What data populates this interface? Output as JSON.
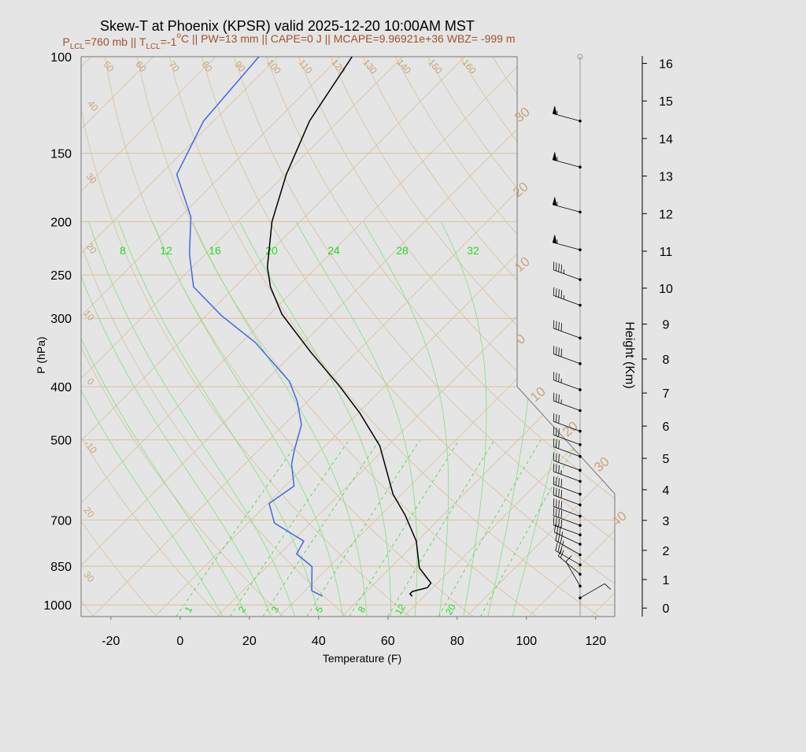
{
  "chart_data": {
    "type": "skewt",
    "title": "Skew-T at Phoenix (KPSR) valid 2025-12-20 10:00AM MST",
    "subtitle_parts": [
      "P",
      "LCL",
      "=760 mb || T",
      "LCL",
      "=-1",
      "o",
      "C || PW=13 mm || CAPE=0 J || MCAPE=9.96921e+36 WBZ= -999 m"
    ],
    "xlabel": "Temperature (F)",
    "ylabel": "P (hPa)",
    "y2label": "Height (Km)",
    "xlim": [
      -28.6,
      125.5
    ],
    "xticks": [
      -20,
      0,
      20,
      40,
      60,
      80,
      100,
      120
    ],
    "ylim": [
      1050,
      100
    ],
    "log_y": true,
    "yticks": [
      100,
      150,
      200,
      250,
      300,
      400,
      500,
      700,
      850,
      1000
    ],
    "y2lim": [
      -0.3,
      16.2
    ],
    "y2ticks": [
      0,
      1,
      2,
      3,
      4,
      5,
      6,
      7,
      8,
      9,
      10,
      11,
      12,
      13,
      14,
      15,
      16
    ],
    "series": [
      {
        "color": "#000000",
        "pressure": [
          100,
          131,
          164,
          200,
          242,
          263,
          295,
          346,
          400,
          447,
          513,
          628,
          686,
          765,
          856,
          912,
          930,
          945,
          955,
          964
        ],
        "values": [
          -108.6,
          -102.3,
          -93.6,
          -84.1,
          -72.3,
          -65.7,
          -54.5,
          -35.2,
          -16.8,
          -3.4,
          11.8,
          29.5,
          39.1,
          49.8,
          58.4,
          66.1,
          66.4,
          63.2,
          63.2,
          64.5
        ]
      },
      {
        "color": "#4169e1",
        "pressure": [
          100,
          131,
          164,
          196,
          229,
          263,
          297,
          332,
          391,
          425,
          469,
          523,
          554,
          607,
          653,
          709,
          765,
          807,
          851,
          942,
          964
        ],
        "values": [
          -135.5,
          -132.9,
          -125.2,
          -108.9,
          -98.6,
          -87.9,
          -71.4,
          -54.1,
          -33.0,
          -25.0,
          -17.0,
          -11.6,
          -8.4,
          -1.4,
          -3.6,
          3.6,
          17.3,
          18.9,
          27.0,
          33.9,
          38.6
        ]
      }
    ],
    "winds": {
      "pressure": [
        131,
        159,
        192,
        225,
        255,
        284,
        326,
        363,
        405,
        442,
        482,
        510,
        536,
        568,
        595,
        628,
        657,
        689,
        716,
        745,
        775,
        810,
        845,
        879,
        924,
        971
      ],
      "direction": [
        285,
        285,
        285,
        285,
        290,
        290,
        290,
        290,
        290,
        290,
        290,
        290,
        290,
        290,
        290,
        290,
        290,
        290,
        290,
        290,
        295,
        300,
        300,
        310,
        330,
        60
      ],
      "speed": [
        55,
        55,
        55,
        55,
        45,
        45,
        40,
        40,
        35,
        35,
        30,
        30,
        30,
        30,
        35,
        40,
        40,
        40,
        40,
        40,
        35,
        35,
        30,
        20,
        10,
        10
      ]
    },
    "annotations": {
      "top_labels": [
        "50",
        "60",
        "70",
        "80",
        "90",
        "100",
        "110",
        "120",
        "130",
        "140",
        "150",
        "160"
      ],
      "left_labels": [
        "40",
        "30",
        "20",
        "10",
        "0",
        "-10",
        "20",
        "30"
      ],
      "right_labels": [
        "30",
        "20",
        "10",
        "0",
        "10",
        "20",
        "30",
        "40"
      ],
      "moist_labels": [
        "8",
        "12",
        "16",
        "20",
        "24",
        "28",
        "32"
      ],
      "mixing_labels": [
        "1",
        "2",
        "3",
        "5",
        "8",
        "12",
        "20"
      ]
    }
  }
}
